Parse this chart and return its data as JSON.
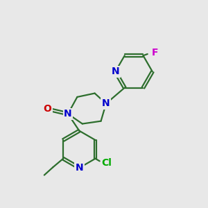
{
  "background_color": "#e8e8e8",
  "bond_color": "#2d6e2d",
  "atom_colors": {
    "N": "#0000cc",
    "O": "#cc0000",
    "Cl": "#00aa00",
    "F": "#cc00cc"
  },
  "figsize": [
    3.0,
    3.0
  ],
  "dpi": 100
}
